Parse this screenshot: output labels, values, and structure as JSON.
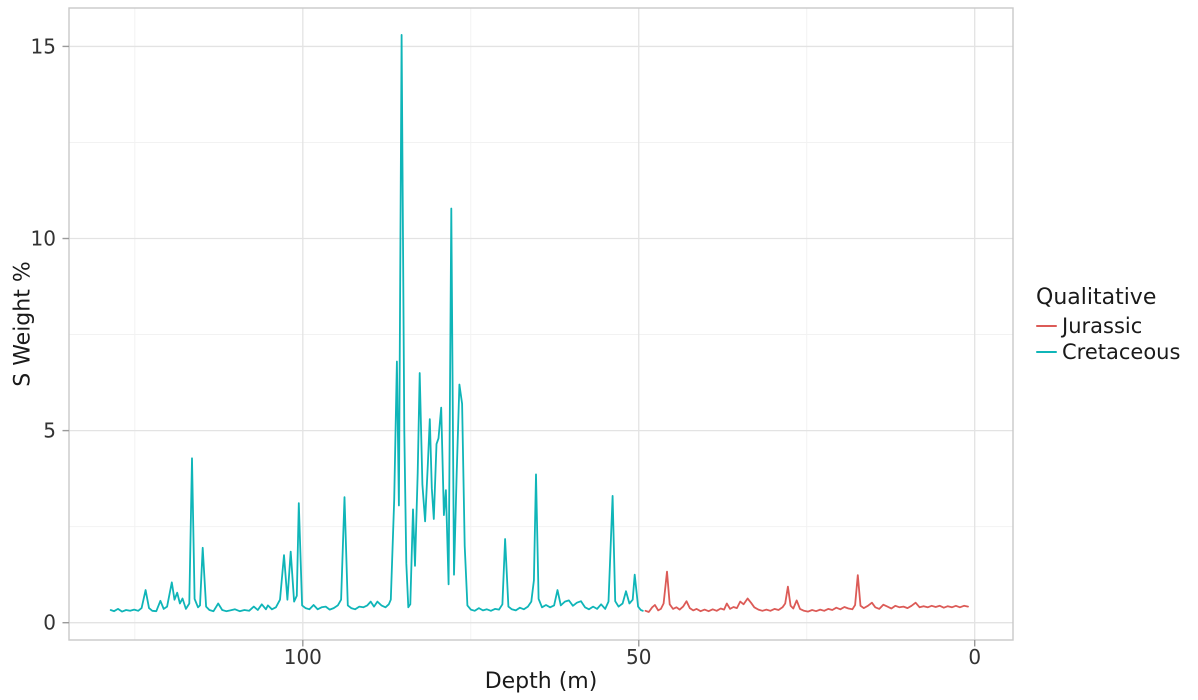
{
  "figure": {
    "x_axis_title": "Depth (m)",
    "y_axis_title": "S Weight %"
  },
  "legend": {
    "title": "Qualitative",
    "items": [
      {
        "label": "Jurassic",
        "color": "#DC5B57"
      },
      {
        "label": "Cretaceous",
        "color": "#0FB5B8"
      }
    ]
  },
  "chart_data": {
    "type": "line",
    "title": "",
    "xlabel": "Depth (m)",
    "ylabel": "S Weight %",
    "x_axis_reversed": true,
    "xlim": [
      134.8,
      -5.7
    ],
    "ylim": [
      -0.45,
      16.0
    ],
    "x_ticks": [
      100,
      50,
      0
    ],
    "x_minor_ticks": [
      125,
      75,
      25
    ],
    "y_ticks": [
      0,
      5,
      10,
      15
    ],
    "y_minor_ticks": [
      2.5,
      7.5,
      12.5
    ],
    "grid": true,
    "legend_position": "right",
    "colors": {
      "major_grid": "#e3e3e3",
      "minor_grid": "#f1f1f1",
      "panel_border": "#c9c9c9",
      "tick_mark": "#9a9a9a",
      "tick_label": "#333333"
    },
    "series": [
      {
        "name": "Jurassic",
        "color": "#DC5B57",
        "points": [
          [
            49.0,
            0.31
          ],
          [
            48.5,
            0.28
          ],
          [
            48.0,
            0.4
          ],
          [
            47.6,
            0.46
          ],
          [
            47.1,
            0.32
          ],
          [
            46.7,
            0.36
          ],
          [
            46.3,
            0.5
          ],
          [
            45.8,
            1.33
          ],
          [
            45.4,
            0.48
          ],
          [
            44.9,
            0.36
          ],
          [
            44.4,
            0.4
          ],
          [
            43.9,
            0.34
          ],
          [
            43.4,
            0.42
          ],
          [
            42.9,
            0.56
          ],
          [
            42.4,
            0.38
          ],
          [
            41.9,
            0.32
          ],
          [
            41.4,
            0.36
          ],
          [
            40.8,
            0.3
          ],
          [
            40.2,
            0.34
          ],
          [
            39.6,
            0.3
          ],
          [
            39.0,
            0.35
          ],
          [
            38.4,
            0.31
          ],
          [
            37.8,
            0.37
          ],
          [
            37.3,
            0.34
          ],
          [
            36.9,
            0.5
          ],
          [
            36.4,
            0.36
          ],
          [
            35.9,
            0.41
          ],
          [
            35.4,
            0.38
          ],
          [
            34.9,
            0.55
          ],
          [
            34.4,
            0.48
          ],
          [
            33.8,
            0.63
          ],
          [
            33.3,
            0.52
          ],
          [
            32.8,
            0.4
          ],
          [
            32.2,
            0.34
          ],
          [
            31.6,
            0.31
          ],
          [
            31.0,
            0.34
          ],
          [
            30.4,
            0.31
          ],
          [
            29.8,
            0.36
          ],
          [
            29.2,
            0.33
          ],
          [
            28.6,
            0.4
          ],
          [
            28.2,
            0.5
          ],
          [
            27.8,
            0.94
          ],
          [
            27.4,
            0.44
          ],
          [
            27.0,
            0.37
          ],
          [
            26.5,
            0.58
          ],
          [
            26.0,
            0.36
          ],
          [
            25.4,
            0.31
          ],
          [
            24.8,
            0.29
          ],
          [
            24.2,
            0.33
          ],
          [
            23.6,
            0.3
          ],
          [
            23.0,
            0.34
          ],
          [
            22.4,
            0.31
          ],
          [
            21.8,
            0.36
          ],
          [
            21.2,
            0.33
          ],
          [
            20.6,
            0.39
          ],
          [
            20.0,
            0.35
          ],
          [
            19.4,
            0.41
          ],
          [
            18.8,
            0.37
          ],
          [
            18.2,
            0.35
          ],
          [
            17.8,
            0.46
          ],
          [
            17.4,
            1.24
          ],
          [
            17.0,
            0.44
          ],
          [
            16.5,
            0.38
          ],
          [
            15.9,
            0.44
          ],
          [
            15.3,
            0.52
          ],
          [
            14.8,
            0.4
          ],
          [
            14.2,
            0.36
          ],
          [
            13.6,
            0.47
          ],
          [
            13.0,
            0.42
          ],
          [
            12.4,
            0.37
          ],
          [
            11.8,
            0.44
          ],
          [
            11.2,
            0.4
          ],
          [
            10.6,
            0.42
          ],
          [
            10.0,
            0.38
          ],
          [
            9.4,
            0.44
          ],
          [
            8.8,
            0.52
          ],
          [
            8.2,
            0.4
          ],
          [
            7.6,
            0.43
          ],
          [
            7.0,
            0.4
          ],
          [
            6.4,
            0.44
          ],
          [
            5.8,
            0.41
          ],
          [
            5.2,
            0.44
          ],
          [
            4.6,
            0.39
          ],
          [
            4.0,
            0.43
          ],
          [
            3.4,
            0.4
          ],
          [
            2.8,
            0.44
          ],
          [
            2.2,
            0.4
          ],
          [
            1.6,
            0.44
          ],
          [
            1.0,
            0.42
          ]
        ]
      },
      {
        "name": "Cretaceous",
        "color": "#0FB5B8",
        "points": [
          [
            128.6,
            0.33
          ],
          [
            128.1,
            0.3
          ],
          [
            127.5,
            0.36
          ],
          [
            126.9,
            0.29
          ],
          [
            126.3,
            0.33
          ],
          [
            125.7,
            0.31
          ],
          [
            125.1,
            0.34
          ],
          [
            124.5,
            0.31
          ],
          [
            124.0,
            0.38
          ],
          [
            123.4,
            0.85
          ],
          [
            122.9,
            0.38
          ],
          [
            122.4,
            0.31
          ],
          [
            121.8,
            0.3
          ],
          [
            121.2,
            0.57
          ],
          [
            120.7,
            0.36
          ],
          [
            120.2,
            0.42
          ],
          [
            119.5,
            1.05
          ],
          [
            119.1,
            0.6
          ],
          [
            118.7,
            0.78
          ],
          [
            118.3,
            0.5
          ],
          [
            117.9,
            0.63
          ],
          [
            117.4,
            0.36
          ],
          [
            116.9,
            0.5
          ],
          [
            116.5,
            4.28
          ],
          [
            116.1,
            0.62
          ],
          [
            115.6,
            0.4
          ],
          [
            115.3,
            0.45
          ],
          [
            114.9,
            1.95
          ],
          [
            114.4,
            0.42
          ],
          [
            113.9,
            0.33
          ],
          [
            113.3,
            0.3
          ],
          [
            112.6,
            0.5
          ],
          [
            112.0,
            0.33
          ],
          [
            111.4,
            0.3
          ],
          [
            110.8,
            0.32
          ],
          [
            110.1,
            0.35
          ],
          [
            109.4,
            0.3
          ],
          [
            108.7,
            0.33
          ],
          [
            108.0,
            0.31
          ],
          [
            107.3,
            0.42
          ],
          [
            106.7,
            0.33
          ],
          [
            106.1,
            0.48
          ],
          [
            105.5,
            0.35
          ],
          [
            105.2,
            0.45
          ],
          [
            104.6,
            0.35
          ],
          [
            104.0,
            0.4
          ],
          [
            103.4,
            0.6
          ],
          [
            102.8,
            1.76
          ],
          [
            102.3,
            0.6
          ],
          [
            101.8,
            1.85
          ],
          [
            101.3,
            0.55
          ],
          [
            100.9,
            0.7
          ],
          [
            100.6,
            3.11
          ],
          [
            100.1,
            0.45
          ],
          [
            99.6,
            0.38
          ],
          [
            99.0,
            0.35
          ],
          [
            98.4,
            0.46
          ],
          [
            97.8,
            0.35
          ],
          [
            97.2,
            0.4
          ],
          [
            96.6,
            0.42
          ],
          [
            96.0,
            0.34
          ],
          [
            95.4,
            0.38
          ],
          [
            94.8,
            0.45
          ],
          [
            94.3,
            0.6
          ],
          [
            93.8,
            3.27
          ],
          [
            93.3,
            0.45
          ],
          [
            92.8,
            0.38
          ],
          [
            92.2,
            0.35
          ],
          [
            91.6,
            0.42
          ],
          [
            91.0,
            0.4
          ],
          [
            90.4,
            0.45
          ],
          [
            89.9,
            0.55
          ],
          [
            89.4,
            0.42
          ],
          [
            88.9,
            0.55
          ],
          [
            88.3,
            0.45
          ],
          [
            87.7,
            0.4
          ],
          [
            87.2,
            0.48
          ],
          [
            86.9,
            0.6
          ],
          [
            86.4,
            3.2
          ],
          [
            86.0,
            6.8
          ],
          [
            85.7,
            3.05
          ],
          [
            85.3,
            15.3
          ],
          [
            84.9,
            5.0
          ],
          [
            84.6,
            1.55
          ],
          [
            84.3,
            0.4
          ],
          [
            84.0,
            0.48
          ],
          [
            83.6,
            2.95
          ],
          [
            83.3,
            1.48
          ],
          [
            82.9,
            3.9
          ],
          [
            82.6,
            6.5
          ],
          [
            82.2,
            3.6
          ],
          [
            81.8,
            2.64
          ],
          [
            81.4,
            4.1
          ],
          [
            81.1,
            5.3
          ],
          [
            80.8,
            3.5
          ],
          [
            80.5,
            2.7
          ],
          [
            80.1,
            4.65
          ],
          [
            79.8,
            4.8
          ],
          [
            79.4,
            5.6
          ],
          [
            79.0,
            2.8
          ],
          [
            78.7,
            3.45
          ],
          [
            78.3,
            1.0
          ],
          [
            77.9,
            10.78
          ],
          [
            77.5,
            1.25
          ],
          [
            77.1,
            3.9
          ],
          [
            76.7,
            6.2
          ],
          [
            76.3,
            5.7
          ],
          [
            75.9,
            2.0
          ],
          [
            75.5,
            0.45
          ],
          [
            75.0,
            0.34
          ],
          [
            74.4,
            0.31
          ],
          [
            73.8,
            0.38
          ],
          [
            73.2,
            0.32
          ],
          [
            72.6,
            0.35
          ],
          [
            72.0,
            0.31
          ],
          [
            71.4,
            0.36
          ],
          [
            70.8,
            0.34
          ],
          [
            70.3,
            0.48
          ],
          [
            69.9,
            2.18
          ],
          [
            69.4,
            0.42
          ],
          [
            68.9,
            0.35
          ],
          [
            68.3,
            0.32
          ],
          [
            67.7,
            0.39
          ],
          [
            67.1,
            0.35
          ],
          [
            66.5,
            0.42
          ],
          [
            66.0,
            0.55
          ],
          [
            65.6,
            1.1
          ],
          [
            65.3,
            3.86
          ],
          [
            64.9,
            0.62
          ],
          [
            64.4,
            0.4
          ],
          [
            63.8,
            0.46
          ],
          [
            63.2,
            0.4
          ],
          [
            62.6,
            0.45
          ],
          [
            62.1,
            0.85
          ],
          [
            61.6,
            0.45
          ],
          [
            61.0,
            0.55
          ],
          [
            60.4,
            0.58
          ],
          [
            59.8,
            0.44
          ],
          [
            59.2,
            0.52
          ],
          [
            58.6,
            0.56
          ],
          [
            58.0,
            0.4
          ],
          [
            57.4,
            0.35
          ],
          [
            56.8,
            0.42
          ],
          [
            56.2,
            0.36
          ],
          [
            55.6,
            0.48
          ],
          [
            55.0,
            0.36
          ],
          [
            54.5,
            0.55
          ],
          [
            53.9,
            3.3
          ],
          [
            53.5,
            0.56
          ],
          [
            53.0,
            0.42
          ],
          [
            52.4,
            0.5
          ],
          [
            51.9,
            0.82
          ],
          [
            51.4,
            0.5
          ],
          [
            50.9,
            0.6
          ],
          [
            50.6,
            1.25
          ],
          [
            50.1,
            0.42
          ],
          [
            49.7,
            0.33
          ],
          [
            49.4,
            0.31
          ]
        ]
      }
    ]
  }
}
